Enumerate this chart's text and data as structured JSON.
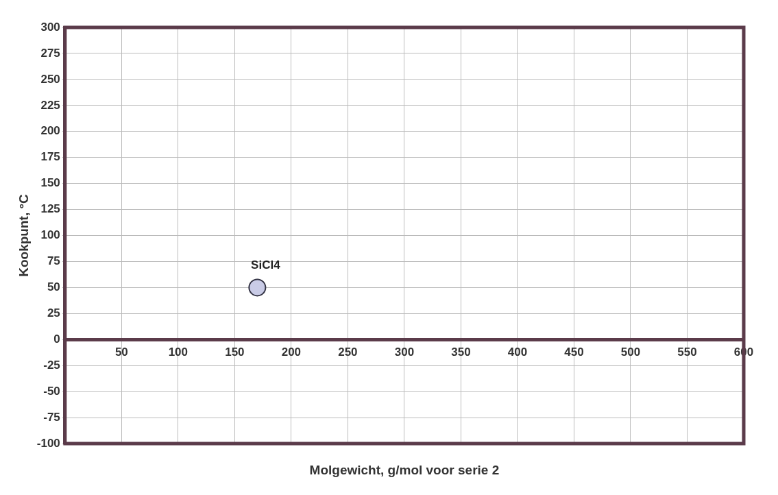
{
  "chart_data": {
    "type": "scatter",
    "xlabel": "Molgewicht, g/mol voor serie 2",
    "ylabel": "Kookpunt, °C",
    "x": [
      170
    ],
    "values": [
      50
    ],
    "color": "#c9cbe6",
    "xlim": [
      0,
      600
    ],
    "xticks": [
      50,
      100,
      150,
      200,
      250,
      300,
      350,
      400,
      450,
      500,
      550,
      600
    ],
    "ylim": [
      -100,
      300
    ],
    "yticks": [
      -100,
      -75,
      -50,
      -25,
      0,
      25,
      50,
      75,
      100,
      125,
      150,
      175,
      200,
      225,
      250,
      275,
      300
    ],
    "grid": true,
    "marker": "circle",
    "annotations": [
      {
        "text": "SiCl4",
        "x": 170,
        "y": 50
      }
    ]
  }
}
